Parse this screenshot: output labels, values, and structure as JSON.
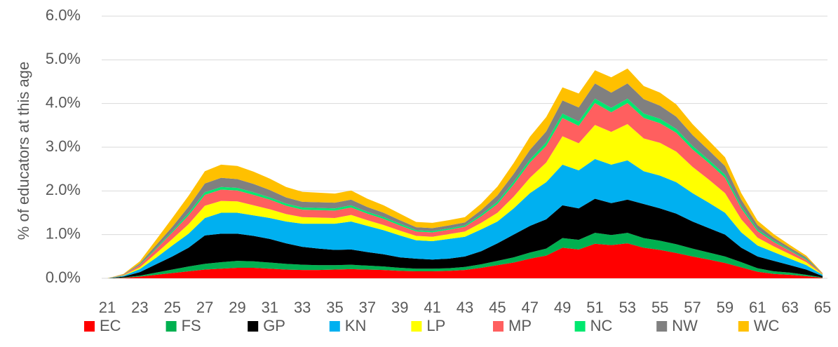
{
  "chart_data": {
    "type": "stacked-area",
    "y_label": "% of educators at this age",
    "x": [
      21,
      22,
      23,
      24,
      25,
      26,
      27,
      28,
      29,
      30,
      31,
      32,
      33,
      34,
      35,
      36,
      37,
      38,
      39,
      40,
      41,
      42,
      43,
      44,
      45,
      46,
      47,
      48,
      49,
      50,
      51,
      52,
      53,
      54,
      55,
      56,
      57,
      58,
      59,
      60,
      61,
      62,
      63,
      64,
      65
    ],
    "xlim": [
      21,
      65
    ],
    "xticks": [
      21,
      23,
      25,
      27,
      29,
      31,
      33,
      35,
      37,
      39,
      41,
      43,
      45,
      47,
      49,
      51,
      53,
      55,
      57,
      59,
      61,
      63,
      65
    ],
    "ylim": [
      0,
      6
    ],
    "yticks": [
      {
        "value": 0,
        "label": "0.0%"
      },
      {
        "value": 1,
        "label": "1.0%"
      },
      {
        "value": 2,
        "label": "2.0%"
      },
      {
        "value": 3,
        "label": "3.0%"
      },
      {
        "value": 4,
        "label": "4.0%"
      },
      {
        "value": 5,
        "label": "5.0%"
      },
      {
        "value": 6,
        "label": "6.0%"
      }
    ],
    "grid": true,
    "legend": "bottom",
    "series": [
      {
        "name": "EC",
        "color": "#ff0000",
        "values": [
          0,
          0.01,
          0.04,
          0.08,
          0.12,
          0.16,
          0.2,
          0.22,
          0.24,
          0.24,
          0.22,
          0.2,
          0.19,
          0.19,
          0.2,
          0.21,
          0.2,
          0.19,
          0.17,
          0.16,
          0.16,
          0.17,
          0.19,
          0.24,
          0.3,
          0.36,
          0.45,
          0.52,
          0.7,
          0.66,
          0.79,
          0.76,
          0.8,
          0.7,
          0.65,
          0.58,
          0.5,
          0.43,
          0.35,
          0.25,
          0.15,
          0.1,
          0.08,
          0.05,
          0.01
        ]
      },
      {
        "name": "FS",
        "color": "#00b050",
        "values": [
          0,
          0.01,
          0.02,
          0.05,
          0.08,
          0.11,
          0.13,
          0.15,
          0.16,
          0.15,
          0.14,
          0.13,
          0.12,
          0.11,
          0.1,
          0.1,
          0.09,
          0.08,
          0.07,
          0.06,
          0.06,
          0.06,
          0.07,
          0.08,
          0.1,
          0.12,
          0.14,
          0.16,
          0.22,
          0.22,
          0.25,
          0.23,
          0.24,
          0.22,
          0.21,
          0.2,
          0.18,
          0.16,
          0.15,
          0.12,
          0.08,
          0.06,
          0.05,
          0.03,
          0.01
        ]
      },
      {
        "name": "GP",
        "color": "#000000",
        "values": [
          0,
          0.02,
          0.08,
          0.19,
          0.3,
          0.43,
          0.65,
          0.65,
          0.62,
          0.58,
          0.54,
          0.47,
          0.41,
          0.38,
          0.35,
          0.35,
          0.31,
          0.28,
          0.24,
          0.23,
          0.21,
          0.22,
          0.24,
          0.3,
          0.4,
          0.52,
          0.61,
          0.67,
          0.75,
          0.72,
          0.78,
          0.73,
          0.76,
          0.78,
          0.74,
          0.7,
          0.62,
          0.56,
          0.5,
          0.33,
          0.27,
          0.24,
          0.17,
          0.12,
          0.03
        ]
      },
      {
        "name": "KN",
        "color": "#00b0f0",
        "values": [
          0,
          0.02,
          0.07,
          0.15,
          0.25,
          0.32,
          0.4,
          0.48,
          0.48,
          0.47,
          0.48,
          0.5,
          0.53,
          0.57,
          0.6,
          0.64,
          0.6,
          0.55,
          0.5,
          0.42,
          0.42,
          0.45,
          0.45,
          0.5,
          0.5,
          0.6,
          0.75,
          0.85,
          0.93,
          0.87,
          0.91,
          0.88,
          0.9,
          0.75,
          0.75,
          0.72,
          0.65,
          0.58,
          0.5,
          0.35,
          0.25,
          0.2,
          0.15,
          0.1,
          0.03
        ]
      },
      {
        "name": "LP",
        "color": "#ffff00",
        "values": [
          0,
          0.01,
          0.04,
          0.1,
          0.15,
          0.22,
          0.28,
          0.27,
          0.26,
          0.23,
          0.2,
          0.17,
          0.15,
          0.14,
          0.13,
          0.15,
          0.13,
          0.12,
          0.11,
          0.1,
          0.1,
          0.11,
          0.12,
          0.15,
          0.2,
          0.27,
          0.35,
          0.45,
          0.65,
          0.62,
          0.78,
          0.75,
          0.83,
          0.75,
          0.75,
          0.7,
          0.6,
          0.53,
          0.45,
          0.3,
          0.18,
          0.13,
          0.1,
          0.07,
          0.01
        ]
      },
      {
        "name": "MP",
        "color": "#ff5f5f",
        "values": [
          0,
          0.01,
          0.05,
          0.1,
          0.15,
          0.2,
          0.25,
          0.26,
          0.25,
          0.24,
          0.22,
          0.19,
          0.17,
          0.17,
          0.17,
          0.17,
          0.15,
          0.14,
          0.12,
          0.1,
          0.1,
          0.1,
          0.11,
          0.15,
          0.2,
          0.28,
          0.35,
          0.38,
          0.42,
          0.4,
          0.5,
          0.45,
          0.48,
          0.47,
          0.45,
          0.43,
          0.4,
          0.38,
          0.35,
          0.25,
          0.15,
          0.1,
          0.08,
          0.05,
          0.01
        ]
      },
      {
        "name": "NC",
        "color": "#00e86f",
        "values": [
          0,
          0,
          0.01,
          0.02,
          0.03,
          0.05,
          0.06,
          0.06,
          0.06,
          0.06,
          0.05,
          0.05,
          0.05,
          0.05,
          0.05,
          0.05,
          0.04,
          0.04,
          0.04,
          0.03,
          0.03,
          0.03,
          0.03,
          0.04,
          0.05,
          0.06,
          0.07,
          0.08,
          0.1,
          0.1,
          0.1,
          0.1,
          0.1,
          0.1,
          0.1,
          0.09,
          0.08,
          0.07,
          0.07,
          0.05,
          0.04,
          0.03,
          0.02,
          0.02,
          0
        ]
      },
      {
        "name": "NW",
        "color": "#808080",
        "values": [
          0,
          0.01,
          0.03,
          0.07,
          0.1,
          0.15,
          0.2,
          0.21,
          0.2,
          0.19,
          0.17,
          0.14,
          0.13,
          0.13,
          0.13,
          0.13,
          0.11,
          0.1,
          0.08,
          0.07,
          0.07,
          0.07,
          0.07,
          0.1,
          0.15,
          0.18,
          0.22,
          0.25,
          0.3,
          0.32,
          0.35,
          0.35,
          0.35,
          0.33,
          0.3,
          0.28,
          0.25,
          0.22,
          0.2,
          0.15,
          0.1,
          0.07,
          0.05,
          0.04,
          0.01
        ]
      },
      {
        "name": "WC",
        "color": "#ffc000",
        "values": [
          0,
          0.01,
          0.05,
          0.12,
          0.2,
          0.25,
          0.28,
          0.3,
          0.3,
          0.28,
          0.26,
          0.24,
          0.23,
          0.22,
          0.21,
          0.21,
          0.19,
          0.17,
          0.15,
          0.12,
          0.12,
          0.12,
          0.12,
          0.15,
          0.2,
          0.25,
          0.3,
          0.33,
          0.3,
          0.32,
          0.3,
          0.35,
          0.34,
          0.3,
          0.3,
          0.28,
          0.25,
          0.22,
          0.2,
          0.15,
          0.1,
          0.08,
          0.06,
          0.04,
          0.01
        ]
      }
    ]
  }
}
